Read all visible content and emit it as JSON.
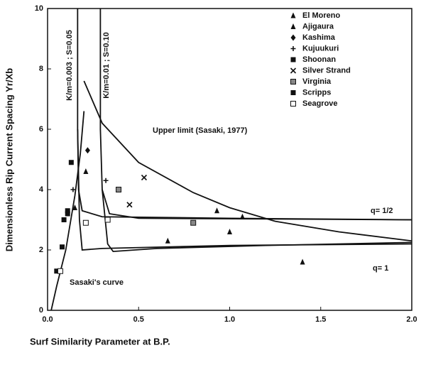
{
  "chart_data": {
    "type": "scatter",
    "xlabel": "Surf Similarity Parameter at B.P.",
    "ylabel": "Dimensionless Rip Current Spacing  Yr/Xb",
    "xlim": [
      0,
      2
    ],
    "ylim": [
      0,
      10
    ],
    "xticks": [
      {
        "value": 0,
        "label": "0.0"
      },
      0.5,
      {
        "value": 1,
        "label": "1.0"
      },
      1.5,
      {
        "value": 2,
        "label": "2.0"
      }
    ],
    "yticks": [
      0,
      2,
      4,
      6,
      8,
      10
    ],
    "legend": "upper right",
    "series": [
      {
        "name": "El Moreno",
        "marker": "triangle",
        "color": "#111111",
        "x": [
          0.66,
          0.93,
          1.0,
          1.07,
          1.4
        ],
        "values": [
          2.3,
          3.3,
          2.6,
          3.1,
          1.6
        ]
      },
      {
        "name": "Ajigaura",
        "marker": "triangle",
        "color": "#111111",
        "x": [
          0.21,
          0.15
        ],
        "values": [
          4.6,
          3.4
        ]
      },
      {
        "name": "Kashima",
        "marker": "diamond",
        "color": "#111111",
        "x": [
          0.22
        ],
        "values": [
          5.3
        ]
      },
      {
        "name": "Kujuukuri",
        "marker": "plus",
        "color": "#111111",
        "x": [
          0.14,
          0.32
        ],
        "values": [
          4.0,
          4.3
        ]
      },
      {
        "name": "Shoonan",
        "marker": "square",
        "color": "#111111",
        "x": [
          0.13,
          0.11,
          0.09,
          0.08
        ],
        "values": [
          4.9,
          3.3,
          3.0,
          2.1
        ]
      },
      {
        "name": "Silver Strand",
        "marker": "x",
        "color": "#111111",
        "x": [
          0.53,
          0.45
        ],
        "values": [
          4.4,
          3.5
        ]
      },
      {
        "name": "Virginia",
        "marker": "square-dotted",
        "color": "#111111",
        "x": [
          0.39,
          0.8
        ],
        "values": [
          4.0,
          2.9
        ]
      },
      {
        "name": "Scripps",
        "marker": "square",
        "color": "#111111",
        "x": [
          0.11,
          0.05
        ],
        "values": [
          3.2,
          1.3
        ]
      },
      {
        "name": "Seagrove",
        "marker": "square-open",
        "color": "#111111",
        "x": [
          0.21,
          0.33,
          0.07
        ],
        "values": [
          2.9,
          3.0,
          1.3
        ]
      },
      {
        "marker": "line",
        "color": "#111111",
        "x": [
          0.02,
          0.05,
          0.1,
          0.15,
          0.18,
          0.2
        ],
        "values": [
          0,
          0.8,
          2.0,
          3.8,
          5.2,
          6.6
        ]
      },
      {
        "marker": "line",
        "color": "#111111",
        "x": [
          0.165,
          0.165,
          0.17,
          0.19,
          0.3,
          1.0,
          2.0
        ],
        "values": [
          10,
          6,
          4,
          3.3,
          3.1,
          3.05,
          3.0
        ]
      },
      {
        "marker": "line",
        "color": "#111111",
        "x": [
          0.165,
          0.175,
          0.19,
          0.3,
          1.0,
          2.0
        ],
        "values": [
          6,
          3,
          2.0,
          2.05,
          2.15,
          2.2
        ]
      },
      {
        "marker": "line",
        "color": "#111111",
        "x": [
          0.29,
          0.29,
          0.3,
          0.34,
          0.5,
          2.0
        ],
        "values": [
          10,
          6,
          4,
          3.2,
          3.05,
          3.0
        ]
      },
      {
        "marker": "line",
        "color": "#111111",
        "x": [
          0.3,
          0.33,
          0.36,
          0.6,
          1.2,
          2.0
        ],
        "values": [
          4,
          2.2,
          1.95,
          2.05,
          2.15,
          2.25
        ]
      },
      {
        "marker": "line",
        "color": "#111111",
        "x": [
          0.2,
          0.3,
          0.5,
          0.8,
          1.0,
          1.25,
          1.6,
          2.0
        ],
        "values": [
          7.6,
          6.2,
          4.9,
          3.9,
          3.4,
          2.95,
          2.6,
          2.3
        ]
      }
    ],
    "annotations": [
      "K/m=0.003 ; S=0.05",
      "K/m=0.01 ; S=0.10",
      "Upper limit (Sasaki, 1977)",
      "q= 1/2",
      "q= 1",
      "Sasaki's curve"
    ]
  }
}
